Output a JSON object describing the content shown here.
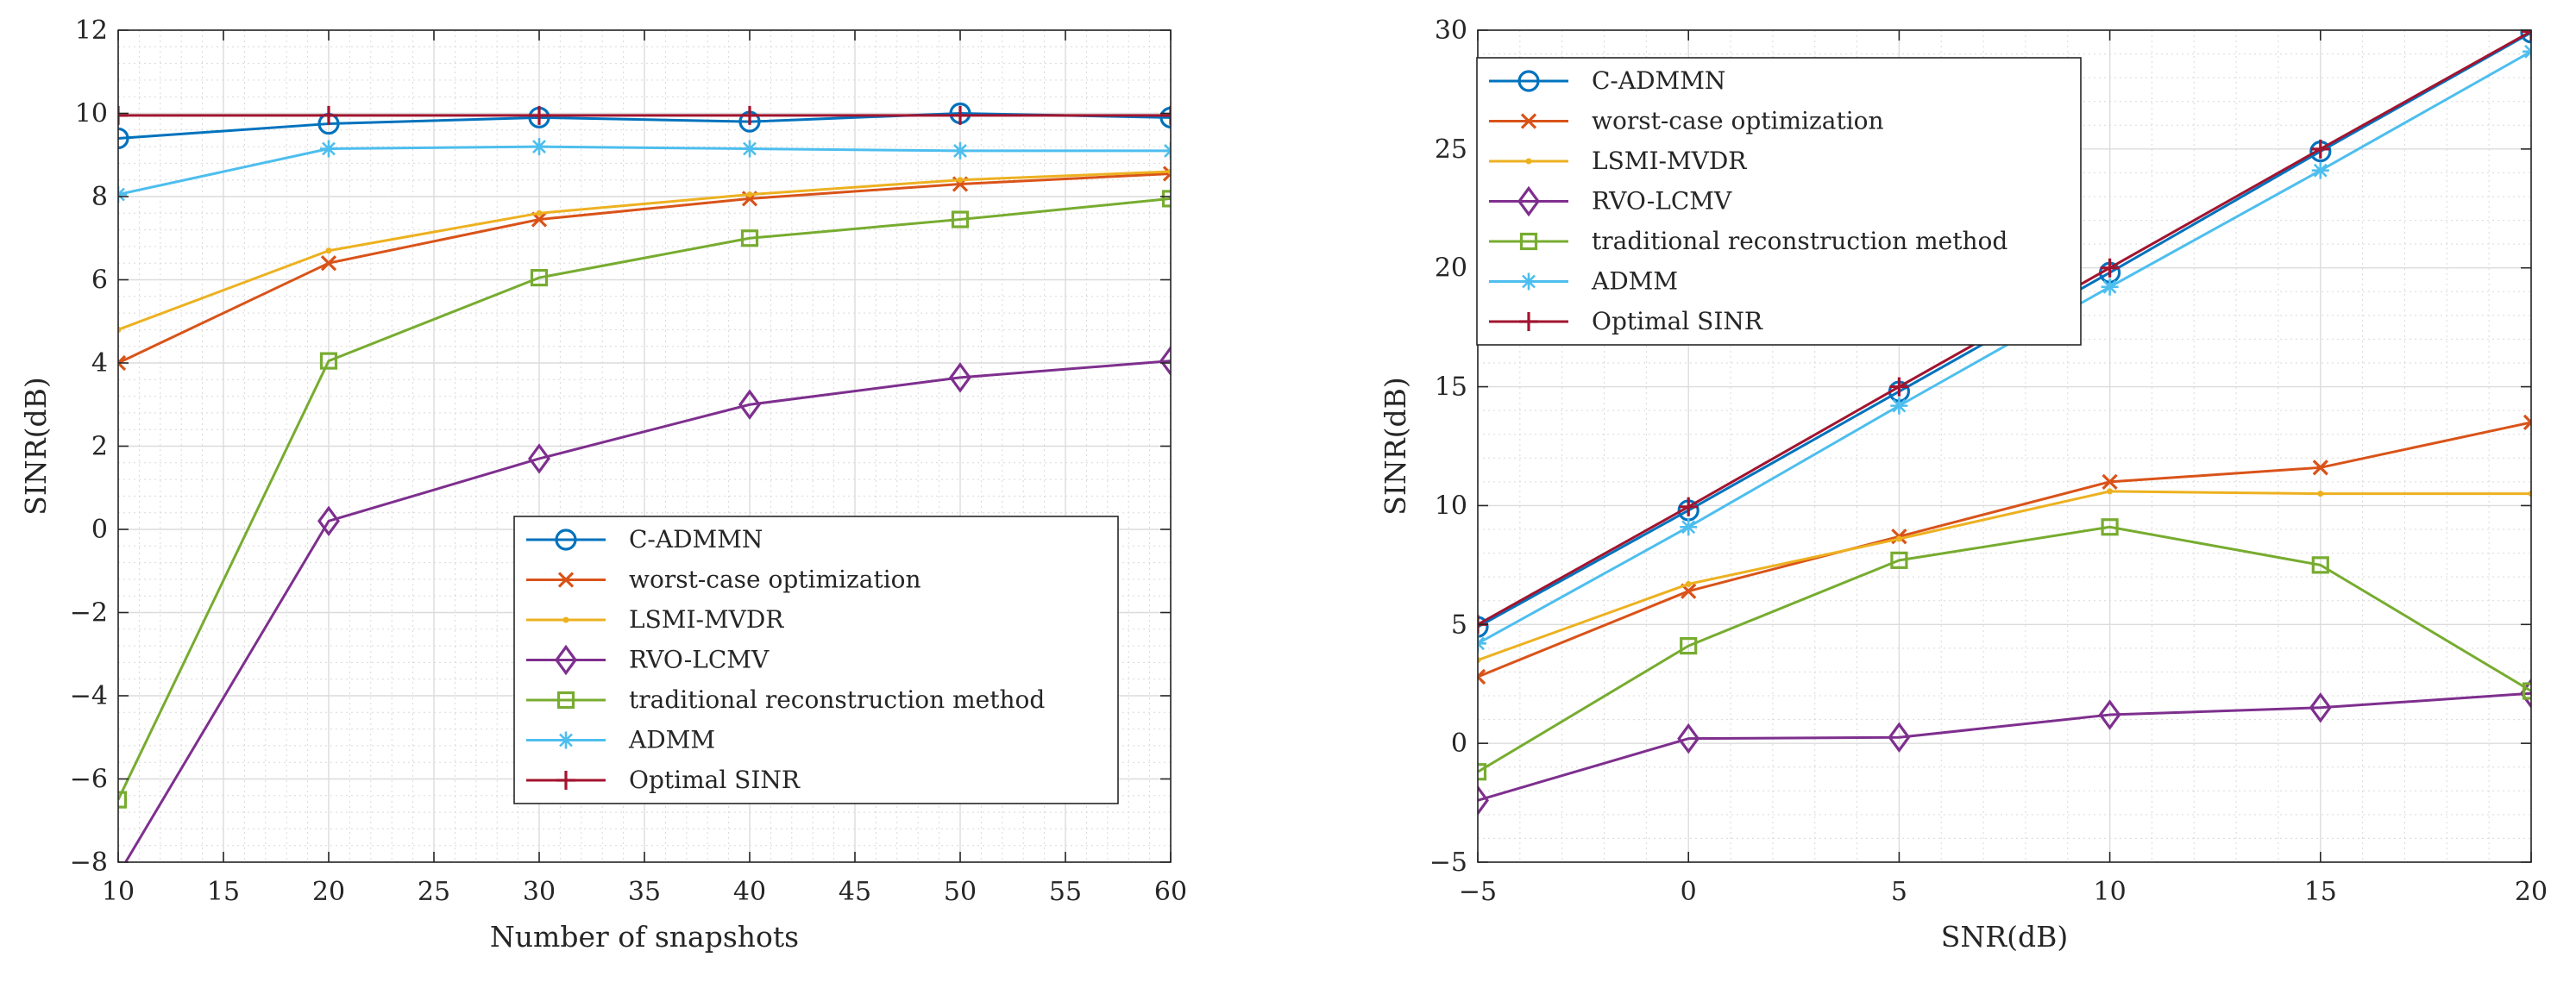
{
  "colors": {
    "C-ADMMN": "#0072bd",
    "worst-case optimization": "#d95319",
    "LSMI-MVDR": "#edb120",
    "RVO-LCMV": "#7e2f8e",
    "traditional reconstruction method": "#77ac30",
    "ADMM": "#4dbeee",
    "Optimal SINR": "#a2142f"
  },
  "chart_data": [
    {
      "type": "line",
      "title": "",
      "xlabel": "Number of snapshots",
      "ylabel": "SINR(dB)",
      "xlim": [
        10,
        60
      ],
      "ylim": [
        -8,
        12
      ],
      "xticks": [
        10,
        15,
        20,
        25,
        30,
        35,
        40,
        45,
        50,
        55,
        60
      ],
      "yticks": [
        -8,
        -6,
        -4,
        -2,
        0,
        2,
        4,
        6,
        8,
        10,
        12
      ],
      "grid": true,
      "legend_position": "lower-right",
      "x": [
        10,
        20,
        30,
        40,
        50,
        60
      ],
      "series": [
        {
          "name": "C-ADMMN",
          "marker": "circle",
          "values": [
            9.4,
            9.75,
            9.9,
            9.8,
            10.0,
            9.9
          ]
        },
        {
          "name": "worst-case optimization",
          "marker": "x",
          "values": [
            4.0,
            6.4,
            7.45,
            7.95,
            8.3,
            8.55
          ]
        },
        {
          "name": "LSMI-MVDR",
          "marker": "dot",
          "values": [
            4.8,
            6.7,
            7.6,
            8.05,
            8.4,
            8.6
          ]
        },
        {
          "name": "RVO-LCMV",
          "marker": "diamond",
          "values": [
            -8.3,
            0.2,
            1.7,
            3.0,
            3.65,
            4.05
          ]
        },
        {
          "name": "traditional reconstruction method",
          "marker": "square",
          "values": [
            -6.5,
            4.05,
            6.05,
            7.0,
            7.45,
            7.95
          ]
        },
        {
          "name": "ADMM",
          "marker": "star",
          "values": [
            8.05,
            9.15,
            9.2,
            9.15,
            9.1,
            9.1
          ]
        },
        {
          "name": "Optimal SINR",
          "marker": "plus",
          "values": [
            9.95,
            9.95,
            9.95,
            9.95,
            9.95,
            9.95
          ]
        }
      ]
    },
    {
      "type": "line",
      "title": "",
      "xlabel": "SNR(dB)",
      "ylabel": "SINR(dB)",
      "xlim": [
        -5,
        20
      ],
      "ylim": [
        -5,
        30
      ],
      "xticks": [
        -5,
        0,
        5,
        10,
        15,
        20
      ],
      "yticks": [
        -5,
        0,
        5,
        10,
        15,
        20,
        25,
        30
      ],
      "grid": true,
      "legend_position": "upper-left",
      "x": [
        -5,
        0,
        5,
        10,
        15,
        20
      ],
      "series": [
        {
          "name": "C-ADMMN",
          "marker": "circle",
          "values": [
            4.9,
            9.8,
            14.8,
            19.8,
            24.9,
            29.9
          ]
        },
        {
          "name": "worst-case optimization",
          "marker": "x",
          "values": [
            2.8,
            6.4,
            8.7,
            11.0,
            11.6,
            13.5
          ]
        },
        {
          "name": "LSMI-MVDR",
          "marker": "dot",
          "values": [
            3.5,
            6.7,
            8.6,
            10.6,
            10.5,
            10.5
          ]
        },
        {
          "name": "RVO-LCMV",
          "marker": "diamond",
          "values": [
            -2.4,
            0.2,
            0.25,
            1.2,
            1.5,
            2.1
          ]
        },
        {
          "name": "traditional reconstruction method",
          "marker": "square",
          "values": [
            -1.2,
            4.1,
            7.7,
            9.1,
            7.5,
            2.2
          ]
        },
        {
          "name": "ADMM",
          "marker": "star",
          "values": [
            4.2,
            9.1,
            14.2,
            19.2,
            24.1,
            29.1
          ]
        },
        {
          "name": "Optimal SINR",
          "marker": "plus",
          "values": [
            5.0,
            9.95,
            15.0,
            20.0,
            25.0,
            29.95
          ]
        }
      ]
    }
  ]
}
